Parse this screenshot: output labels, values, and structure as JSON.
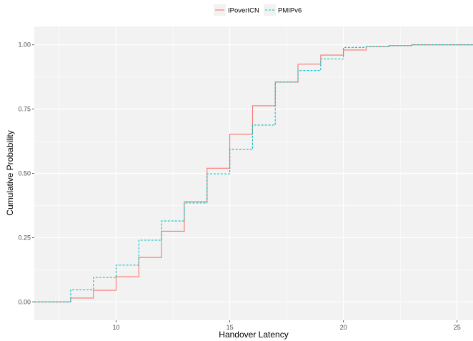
{
  "chart_data": {
    "type": "line",
    "subtype": "ecdf-step",
    "xlabel": "Handover Latency",
    "ylabel": "Cumulative Probability",
    "xlim": [
      6.4,
      25.7
    ],
    "ylim": [
      0,
      1
    ],
    "x_ticks": [
      10,
      15,
      20,
      25
    ],
    "y_ticks": [
      0,
      0.25,
      0.5,
      0.75,
      1
    ],
    "y_tick_labels": [
      "0.00",
      "0.25",
      "0.50",
      "0.75",
      "1.00"
    ],
    "grid": true,
    "legend_position": "top",
    "series": [
      {
        "name": "IPoverICN",
        "color": "#F8766D",
        "dash": "solid",
        "points": [
          [
            6.4,
            0
          ],
          [
            7,
            0.0
          ],
          [
            8,
            0.015
          ],
          [
            9,
            0.045
          ],
          [
            10,
            0.098
          ],
          [
            11,
            0.173
          ],
          [
            12,
            0.275
          ],
          [
            13,
            0.39
          ],
          [
            14,
            0.52
          ],
          [
            15,
            0.652
          ],
          [
            16,
            0.763
          ],
          [
            17,
            0.855
          ],
          [
            18,
            0.925
          ],
          [
            19,
            0.96
          ],
          [
            20,
            0.98
          ],
          [
            21,
            0.993
          ],
          [
            22,
            0.997
          ],
          [
            23,
            1.0
          ],
          [
            25.7,
            1.0
          ]
        ]
      },
      {
        "name": "PMIPv6",
        "color": "#00BFC4",
        "dash": "dashed",
        "points": [
          [
            6.4,
            0
          ],
          [
            7,
            0.0
          ],
          [
            8,
            0.047
          ],
          [
            9,
            0.095
          ],
          [
            10,
            0.143
          ],
          [
            11,
            0.24
          ],
          [
            12,
            0.315
          ],
          [
            13,
            0.385
          ],
          [
            14,
            0.498
          ],
          [
            15,
            0.593
          ],
          [
            16,
            0.688
          ],
          [
            17,
            0.855
          ],
          [
            18,
            0.9
          ],
          [
            19,
            0.945
          ],
          [
            20,
            0.99
          ],
          [
            21,
            0.993
          ],
          [
            22,
            0.997
          ],
          [
            23,
            1.0
          ],
          [
            25.7,
            1.0
          ]
        ]
      }
    ]
  }
}
